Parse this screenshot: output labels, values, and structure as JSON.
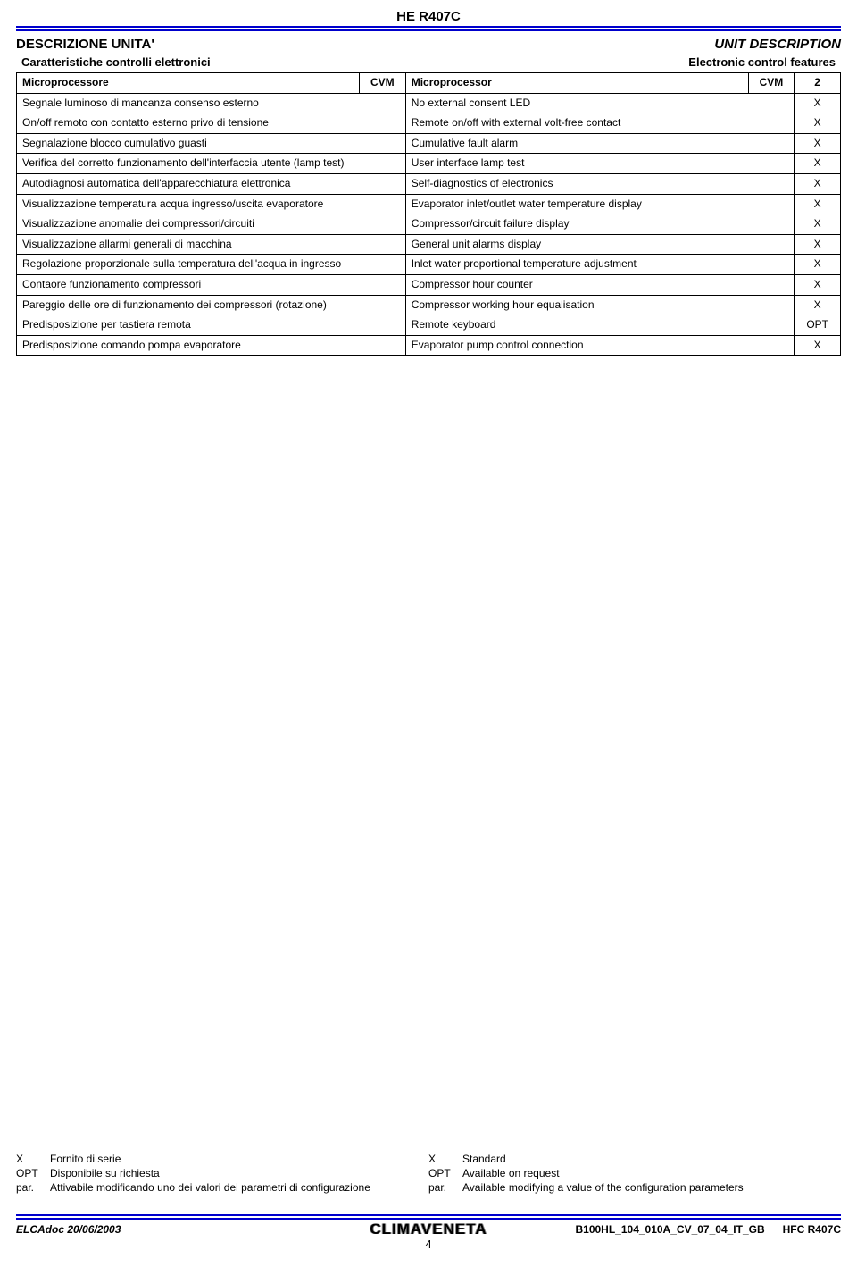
{
  "header": {
    "product": "HE R407C",
    "section_left": "DESCRIZIONE UNITA'",
    "section_right": "UNIT DESCRIPTION",
    "subsection_left": "Caratteristiche controlli elettronici",
    "subsection_right": "Electronic control features"
  },
  "header_row": {
    "it_label": "Microprocessore",
    "it_val": "CVM",
    "en_label": "Microprocessor",
    "en_val1": "CVM",
    "en_val2": "2"
  },
  "rows": [
    {
      "it": "Segnale luminoso di mancanza consenso esterno",
      "en": "No external consent LED",
      "v": "X"
    },
    {
      "it": "On/off remoto con contatto esterno privo di tensione",
      "en": "Remote on/off with external volt-free contact",
      "v": "X"
    },
    {
      "it": "Segnalazione blocco cumulativo guasti",
      "en": "Cumulative fault alarm",
      "v": "X"
    },
    {
      "it": "Verifica del corretto funzionamento dell'interfaccia utente (lamp test)",
      "en": "User interface lamp test",
      "v": "X"
    },
    {
      "it": "Autodiagnosi automatica dell'apparecchiatura elettronica",
      "en": "Self-diagnostics of electronics",
      "v": "X"
    },
    {
      "it": "Visualizzazione temperatura acqua ingresso/uscita evaporatore",
      "en": "Evaporator inlet/outlet water temperature display",
      "v": "X"
    },
    {
      "it": "Visualizzazione anomalie dei compressori/circuiti",
      "en": "Compressor/circuit failure display",
      "v": "X"
    },
    {
      "it": "Visualizzazione allarmi generali di macchina",
      "en": "General unit alarms display",
      "v": "X"
    },
    {
      "it": "Regolazione proporzionale sulla temperatura dell'acqua in ingresso",
      "en": "Inlet water proportional temperature adjustment",
      "v": "X"
    },
    {
      "it": "Contaore funzionamento compressori",
      "en": "Compressor hour counter",
      "v": "X"
    },
    {
      "it": "Pareggio delle ore di funzionamento dei compressori (rotazione)",
      "en": "Compressor working hour equalisation",
      "v": "X"
    },
    {
      "it": "Predisposizione per  tastiera remota",
      "en": "Remote keyboard",
      "v": "OPT"
    },
    {
      "it": "Predisposizione comando pompa evaporatore",
      "en": "Evaporator pump control connection",
      "v": "X"
    }
  ],
  "legend": {
    "left": [
      {
        "k": "X",
        "t": "Fornito di serie"
      },
      {
        "k": "OPT",
        "t": "Disponibile su richiesta"
      },
      {
        "k": "par.",
        "t": "Attivabile modificando uno dei valori dei parametri di configurazione"
      }
    ],
    "right": [
      {
        "k": "X",
        "t": "Standard"
      },
      {
        "k": "OPT",
        "t": "Available on request"
      },
      {
        "k": "par.",
        "t": "Available modifying a value of the configuration parameters"
      }
    ]
  },
  "footer": {
    "left": "ELCAdoc  20/06/2003",
    "logo": "CLIMAVENETA",
    "right_doc": "B100HL_104_010A_CV_07_04_IT_GB",
    "right_code": "HFC R407C",
    "page": "4"
  },
  "style": {
    "rule_color": "#0000cc",
    "border_color": "#000000",
    "font_body": 12,
    "font_title": 15
  }
}
